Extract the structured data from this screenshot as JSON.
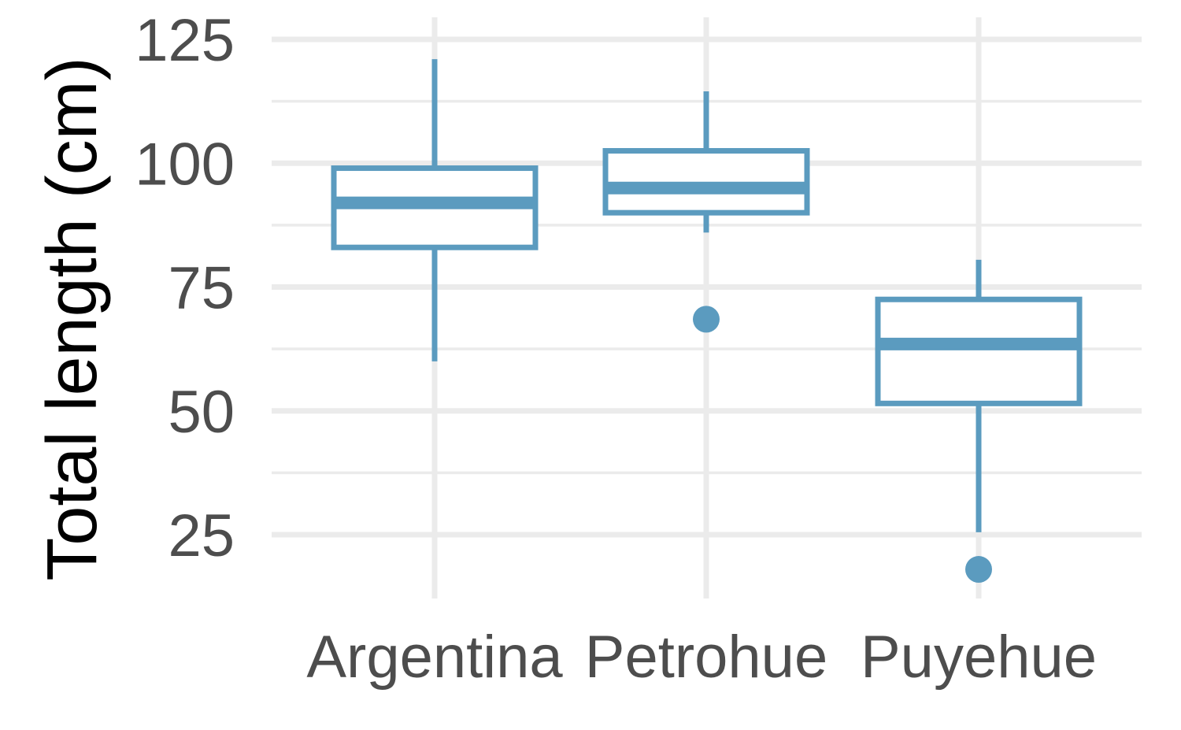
{
  "chart_data": {
    "type": "box",
    "categories": [
      "Argentina",
      "Petrohue",
      "Puyehue"
    ],
    "series": [
      {
        "boxes": [
          {
            "category": "Argentina",
            "whisker_low": 60,
            "q1": 83,
            "median": 92,
            "q3": 99,
            "whisker_high": 121,
            "outliers": []
          },
          {
            "category": "Petrohue",
            "whisker_low": 86,
            "q1": 90,
            "median": 95,
            "q3": 102.5,
            "whisker_high": 114.5,
            "outliers": [
              68.5
            ]
          },
          {
            "category": "Puyehue",
            "whisker_low": 25.5,
            "q1": 51.5,
            "median": 63.5,
            "q3": 72.5,
            "whisker_high": 80.5,
            "outliers": [
              18
            ]
          }
        ]
      }
    ],
    "xlabel": "",
    "ylabel": "Total length (cm)",
    "ylim": [
      13,
      126
    ],
    "y_ticks": [
      "25",
      "50",
      "75",
      "100",
      "125"
    ],
    "y_tick_values": [
      25,
      50,
      75,
      100,
      125
    ],
    "y_minor_values": [
      37.5,
      62.5,
      87.5,
      112.5
    ],
    "grid": true,
    "legend": "none",
    "colors": {
      "box": "#5b9bbf",
      "grid": "#ebebeb",
      "tick_label": "#4d4d4d",
      "axis_title": "#000000"
    }
  }
}
